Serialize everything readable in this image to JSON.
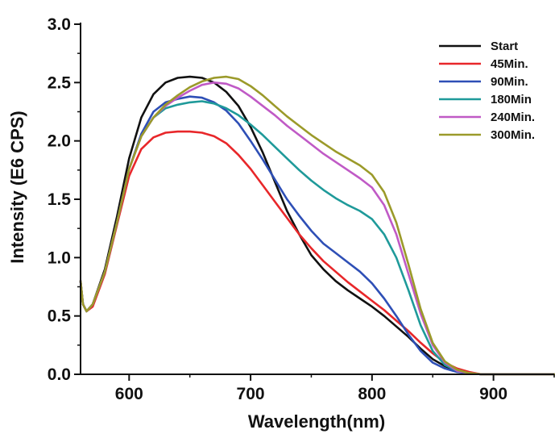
{
  "chart_data": {
    "type": "line",
    "title": "",
    "xlabel": "Wavelength(nm)",
    "ylabel": "Intensity (E6 CPS)",
    "xlim": [
      560,
      950
    ],
    "ylim": [
      0.0,
      3.0
    ],
    "x_ticks": [
      600,
      700,
      800,
      900
    ],
    "x_tick_labels": [
      "600",
      "700",
      "800",
      "900"
    ],
    "y_ticks": [
      0.0,
      0.5,
      1.0,
      1.5,
      2.0,
      2.5,
      3.0
    ],
    "y_tick_labels": [
      "0.0",
      "0.5",
      "1.0",
      "1.5",
      "2.0",
      "2.5",
      "3.0"
    ],
    "grid": false,
    "legend_position": "top-right",
    "x": [
      560,
      562,
      565,
      570,
      580,
      590,
      600,
      610,
      620,
      630,
      640,
      650,
      660,
      670,
      680,
      690,
      700,
      710,
      720,
      730,
      740,
      750,
      760,
      770,
      780,
      790,
      800,
      810,
      820,
      830,
      840,
      850,
      860,
      870,
      880,
      890,
      900,
      910,
      920,
      930,
      940,
      950
    ],
    "series": [
      {
        "name": "Start",
        "color": "#111111",
        "values": [
          0.8,
          0.6,
          0.54,
          0.6,
          0.9,
          1.35,
          1.85,
          2.2,
          2.4,
          2.5,
          2.54,
          2.55,
          2.54,
          2.5,
          2.42,
          2.3,
          2.12,
          1.9,
          1.65,
          1.4,
          1.2,
          1.02,
          0.9,
          0.8,
          0.72,
          0.65,
          0.58,
          0.5,
          0.41,
          0.32,
          0.22,
          0.13,
          0.07,
          0.03,
          0.01,
          0.0,
          0.0,
          0.0,
          0.0,
          0.0,
          0.0,
          0.0
        ]
      },
      {
        "name": "45Min.",
        "color": "#e8272a",
        "values": [
          0.8,
          0.6,
          0.54,
          0.58,
          0.86,
          1.28,
          1.7,
          1.93,
          2.03,
          2.07,
          2.08,
          2.08,
          2.07,
          2.04,
          1.98,
          1.88,
          1.76,
          1.62,
          1.48,
          1.34,
          1.2,
          1.08,
          0.97,
          0.88,
          0.79,
          0.71,
          0.63,
          0.55,
          0.46,
          0.37,
          0.27,
          0.18,
          0.1,
          0.05,
          0.02,
          0.0,
          0.0,
          0.0,
          0.0,
          0.0,
          0.0,
          0.0
        ]
      },
      {
        "name": "90Min.",
        "color": "#2e4fb6",
        "values": [
          0.8,
          0.6,
          0.54,
          0.6,
          0.88,
          1.3,
          1.76,
          2.06,
          2.25,
          2.33,
          2.36,
          2.38,
          2.37,
          2.33,
          2.26,
          2.15,
          2.0,
          1.84,
          1.67,
          1.5,
          1.36,
          1.23,
          1.12,
          1.04,
          0.96,
          0.88,
          0.78,
          0.65,
          0.5,
          0.34,
          0.2,
          0.1,
          0.05,
          0.02,
          0.01,
          0.0,
          0.0,
          0.0,
          0.0,
          0.0,
          0.0,
          0.0
        ]
      },
      {
        "name": "180Min",
        "color": "#1f9a9a",
        "values": [
          0.8,
          0.6,
          0.54,
          0.6,
          0.88,
          1.3,
          1.76,
          2.04,
          2.2,
          2.28,
          2.31,
          2.33,
          2.34,
          2.32,
          2.28,
          2.22,
          2.14,
          2.05,
          1.95,
          1.85,
          1.75,
          1.66,
          1.58,
          1.51,
          1.45,
          1.4,
          1.33,
          1.2,
          1.0,
          0.72,
          0.42,
          0.2,
          0.08,
          0.03,
          0.01,
          0.0,
          0.0,
          0.0,
          0.0,
          0.0,
          0.0,
          0.0
        ]
      },
      {
        "name": "240Min.",
        "color": "#c05ac6",
        "values": [
          0.8,
          0.6,
          0.54,
          0.6,
          0.88,
          1.3,
          1.76,
          2.04,
          2.2,
          2.3,
          2.37,
          2.43,
          2.48,
          2.5,
          2.49,
          2.45,
          2.38,
          2.3,
          2.22,
          2.13,
          2.05,
          1.97,
          1.89,
          1.82,
          1.75,
          1.68,
          1.6,
          1.45,
          1.2,
          0.86,
          0.52,
          0.25,
          0.1,
          0.03,
          0.01,
          0.0,
          0.0,
          0.0,
          0.0,
          0.0,
          0.0,
          0.0
        ]
      },
      {
        "name": "300Min.",
        "color": "#9b9a2a",
        "values": [
          0.8,
          0.6,
          0.54,
          0.6,
          0.88,
          1.3,
          1.76,
          2.04,
          2.2,
          2.31,
          2.39,
          2.46,
          2.51,
          2.54,
          2.55,
          2.53,
          2.47,
          2.39,
          2.3,
          2.21,
          2.13,
          2.05,
          1.98,
          1.91,
          1.85,
          1.79,
          1.71,
          1.56,
          1.3,
          0.94,
          0.56,
          0.27,
          0.11,
          0.04,
          0.01,
          0.0,
          0.0,
          0.0,
          0.0,
          0.0,
          0.0,
          0.0
        ]
      }
    ]
  }
}
